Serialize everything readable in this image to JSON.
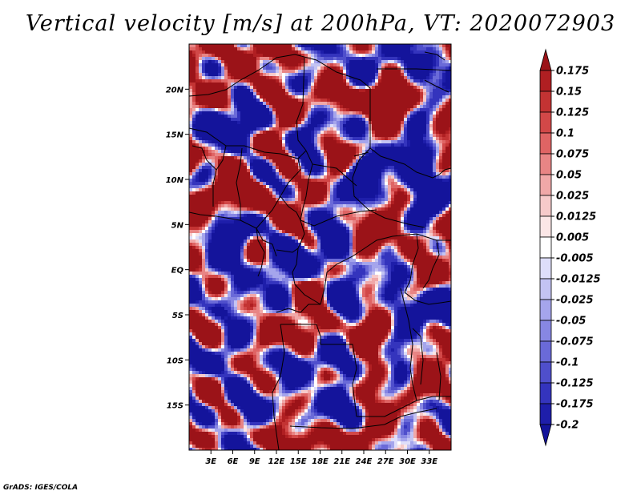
{
  "title": "Vertical velocity [m/s] at 200hPa, VT: 2020072903",
  "credit": "GrADS: IGES/COLA",
  "chart_data": {
    "type": "heatmap",
    "variable": "Vertical velocity",
    "units": "m/s",
    "level": "200hPa",
    "valid_time": "2020072903",
    "lon_range": [
      0,
      36
    ],
    "lat_range": [
      -20,
      25
    ],
    "x_tick_values": [
      3,
      6,
      9,
      12,
      15,
      18,
      21,
      24,
      27,
      30,
      33
    ],
    "x_tick_labels": [
      "3E",
      "6E",
      "9E",
      "12E",
      "15E",
      "18E",
      "21E",
      "24E",
      "27E",
      "30E",
      "33E"
    ],
    "y_tick_values": [
      20,
      15,
      10,
      5,
      0,
      -5,
      -10,
      -15
    ],
    "y_tick_labels": [
      "20N",
      "15N",
      "10N",
      "5N",
      "EQ",
      "5S",
      "10S",
      "15S"
    ],
    "colorbar": {
      "labels": [
        "0.175",
        "0.15",
        "0.125",
        "0.1",
        "0.075",
        "0.05",
        "0.025",
        "0.0125",
        "0.005",
        "-0.005",
        "-0.0125",
        "-0.025",
        "-0.05",
        "-0.075",
        "-0.1",
        "-0.125",
        "-0.175",
        "-0.2"
      ],
      "colors": [
        "#9b1318",
        "#b01f22",
        "#c33333",
        "#d24848",
        "#df6464",
        "#e88585",
        "#f0a8a8",
        "#f6caca",
        "#fbe6e6",
        "#ffffff",
        "#dedefa",
        "#c3c3f3",
        "#a5a5ec",
        "#8787e3",
        "#6a6ad8",
        "#4f4fcc",
        "#3434bd",
        "#1e1eaa",
        "#14149b"
      ]
    }
  }
}
